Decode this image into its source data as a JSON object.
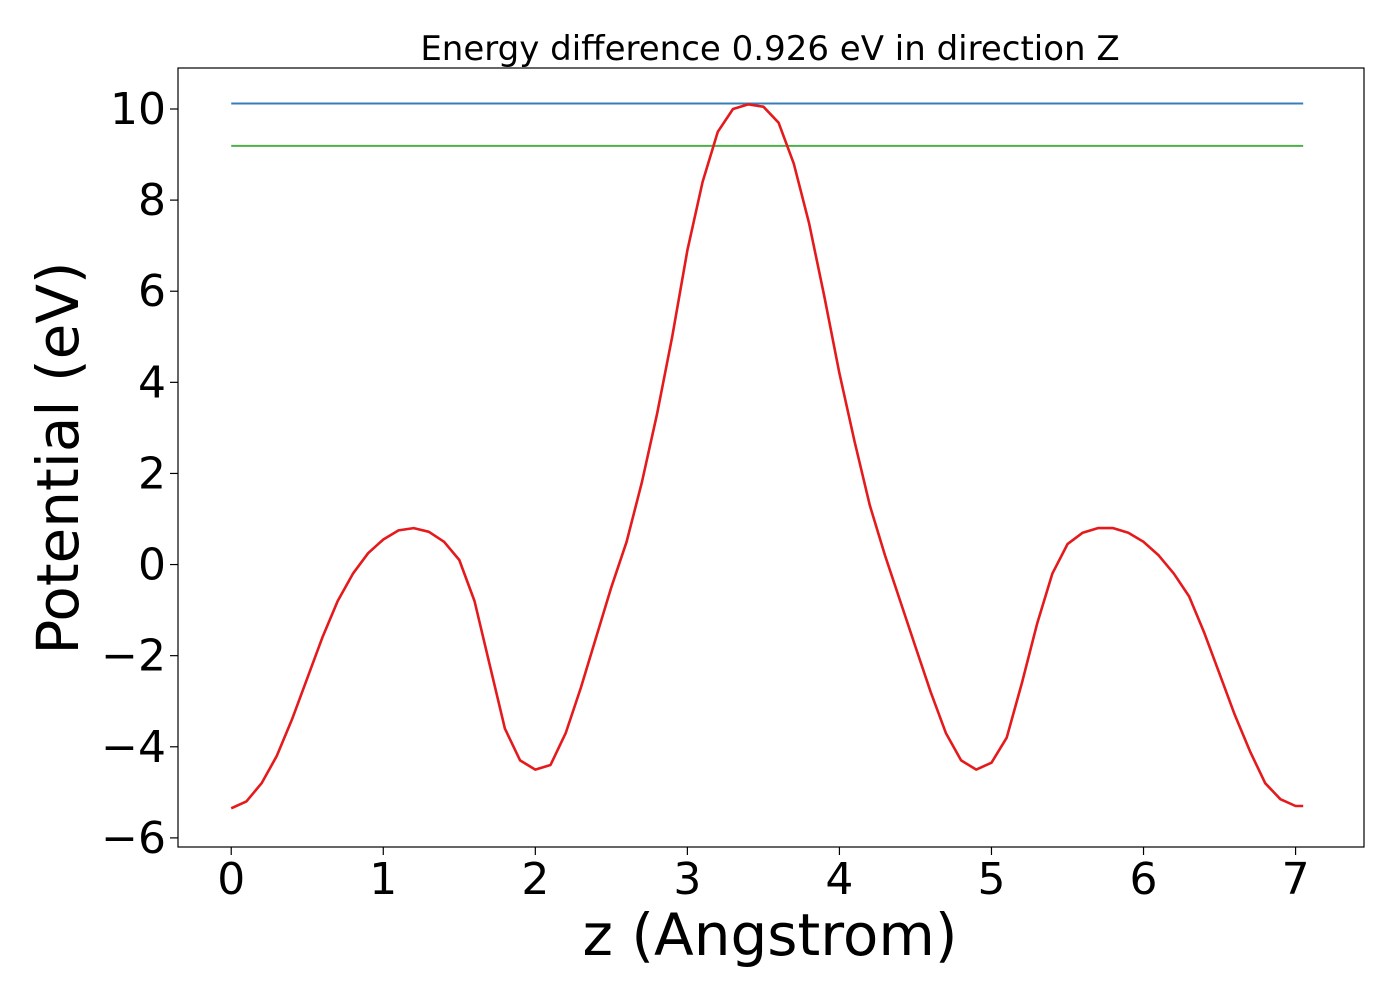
{
  "chart_data": {
    "type": "line",
    "title": "Energy difference 0.926 eV in direction Z",
    "xlabel": "z (Angstrom)",
    "ylabel": "Potential (eV)",
    "xlim": [
      -0.35,
      7.45
    ],
    "ylim": [
      -6.2,
      10.9
    ],
    "xticks": [
      0,
      1,
      2,
      3,
      4,
      5,
      6,
      7
    ],
    "xtick_labels": [
      "0",
      "1",
      "2",
      "3",
      "4",
      "5",
      "6",
      "7"
    ],
    "yticks": [
      -6,
      -4,
      -2,
      0,
      2,
      4,
      6,
      8,
      10
    ],
    "ytick_labels": [
      "−6",
      "−4",
      "−2",
      "0",
      "2",
      "4",
      "6",
      "8",
      "10"
    ],
    "grid": false,
    "colors": {
      "potential": "#e41a1c",
      "max_level": "#377eb8",
      "second_level": "#4daf4a"
    },
    "series": [
      {
        "key": "potential",
        "x": [
          0,
          0.1,
          0.2,
          0.3,
          0.4,
          0.5,
          0.6,
          0.7,
          0.8,
          0.9,
          1.0,
          1.1,
          1.2,
          1.3,
          1.4,
          1.5,
          1.6,
          1.7,
          1.8,
          1.9,
          2.0,
          2.1,
          2.2,
          2.3,
          2.4,
          2.5,
          2.6,
          2.7,
          2.8,
          2.9,
          3.0,
          3.1,
          3.2,
          3.3,
          3.4,
          3.5,
          3.6,
          3.7,
          3.8,
          3.9,
          4.0,
          4.1,
          4.2,
          4.3,
          4.4,
          4.5,
          4.6,
          4.7,
          4.8,
          4.9,
          5.0,
          5.1,
          5.2,
          5.3,
          5.4,
          5.5,
          5.6,
          5.7,
          5.8,
          5.9,
          6.0,
          6.1,
          6.2,
          6.3,
          6.4,
          6.5,
          6.6,
          6.7,
          6.8,
          6.9,
          7.0,
          7.05
        ],
        "y": [
          -5.35,
          -5.2,
          -4.8,
          -4.2,
          -3.4,
          -2.5,
          -1.6,
          -0.8,
          -0.2,
          0.25,
          0.55,
          0.75,
          0.8,
          0.72,
          0.5,
          0.1,
          -0.8,
          -2.2,
          -3.6,
          -4.3,
          -4.5,
          -4.4,
          -3.7,
          -2.7,
          -1.6,
          -0.5,
          0.5,
          1.8,
          3.3,
          5.0,
          6.9,
          8.4,
          9.5,
          10.0,
          10.1,
          10.05,
          9.7,
          8.8,
          7.5,
          5.9,
          4.2,
          2.7,
          1.3,
          0.2,
          -0.8,
          -1.8,
          -2.8,
          -3.7,
          -4.3,
          -4.5,
          -4.35,
          -3.8,
          -2.6,
          -1.3,
          -0.2,
          0.45,
          0.7,
          0.8,
          0.8,
          0.7,
          0.5,
          0.2,
          -0.2,
          -0.7,
          -1.5,
          -2.4,
          -3.3,
          -4.1,
          -4.8,
          -5.15,
          -5.3,
          -5.3
        ]
      }
    ],
    "hlines": [
      {
        "key": "max_level",
        "y": 10.12,
        "x_start": 0,
        "x_end": 7.05
      },
      {
        "key": "second_level",
        "y": 9.19,
        "x_start": 0,
        "x_end": 7.05
      }
    ]
  }
}
